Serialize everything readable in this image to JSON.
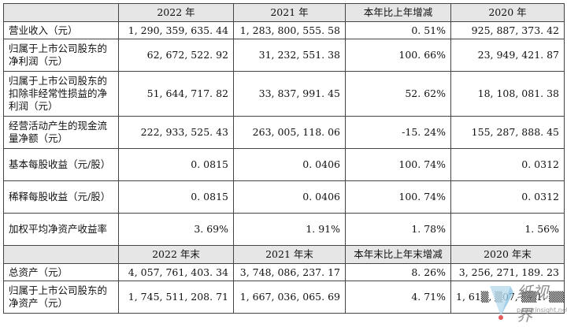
{
  "header1": [
    "",
    "2022 年",
    "2021 年",
    "本年比上年增减",
    "2020 年"
  ],
  "rows1": [
    {
      "label": "营业收入（元）",
      "v2022": "1, 290, 359, 635. 44",
      "v2021": "1, 283, 800, 555. 58",
      "change": "0. 51%",
      "v2020": "925, 887, 373. 42"
    },
    {
      "label": "归属于上市公司股东的净利润（元）",
      "v2022": "62, 672, 522. 92",
      "v2021": "31, 232, 551. 38",
      "change": "100. 66%",
      "v2020": "23, 949, 421. 87"
    },
    {
      "label": "归属于上市公司股东的扣除非经常性损益的净利润（元）",
      "v2022": "51, 644, 717. 82",
      "v2021": "33, 837, 991. 45",
      "change": "52. 62%",
      "v2020": "18, 108, 081. 38"
    },
    {
      "label": "经营活动产生的现金流量净额（元）",
      "v2022": "222, 933, 525. 43",
      "v2021": "263, 005, 118. 06",
      "change": "-15. 24%",
      "v2020": "155, 287, 888. 45"
    },
    {
      "label": "基本每股收益（元/股）",
      "v2022": "0. 0815",
      "v2021": "0. 0406",
      "change": "100. 74%",
      "v2020": "0. 0312"
    },
    {
      "label": "稀释每股收益（元/股）",
      "v2022": "0. 0815",
      "v2021": "0. 0406",
      "change": "100. 74%",
      "v2020": "0. 0312"
    },
    {
      "label": "加权平均净资产收益率",
      "v2022": "3. 69%",
      "v2021": "1. 91%",
      "change": "1. 78%",
      "v2020": "1. 56%"
    }
  ],
  "header2": [
    "",
    "2022 年末",
    "2021 年末",
    "本年末比上年末增减",
    "2020 年末"
  ],
  "rows2": [
    {
      "label": "总资产（元）",
      "v2022": "4, 057, 761, 403. 34",
      "v2021": "3, 748, 086, 237. 17",
      "change": "8. 26%",
      "v2020": "3, 256, 271, 189. 23"
    },
    {
      "label": "归属于上市公司股东的净资产（元）",
      "v2022": "1, 745, 511, 208. 71",
      "v2021": "1, 667, 036, 065. 69",
      "change": "4. 71%",
      "v2020": "1, 61▒, ▒07, ▒▒1. ▒▒"
    }
  ],
  "watermark": {
    "text": "纸视界",
    "url": "paperinsight.net"
  }
}
